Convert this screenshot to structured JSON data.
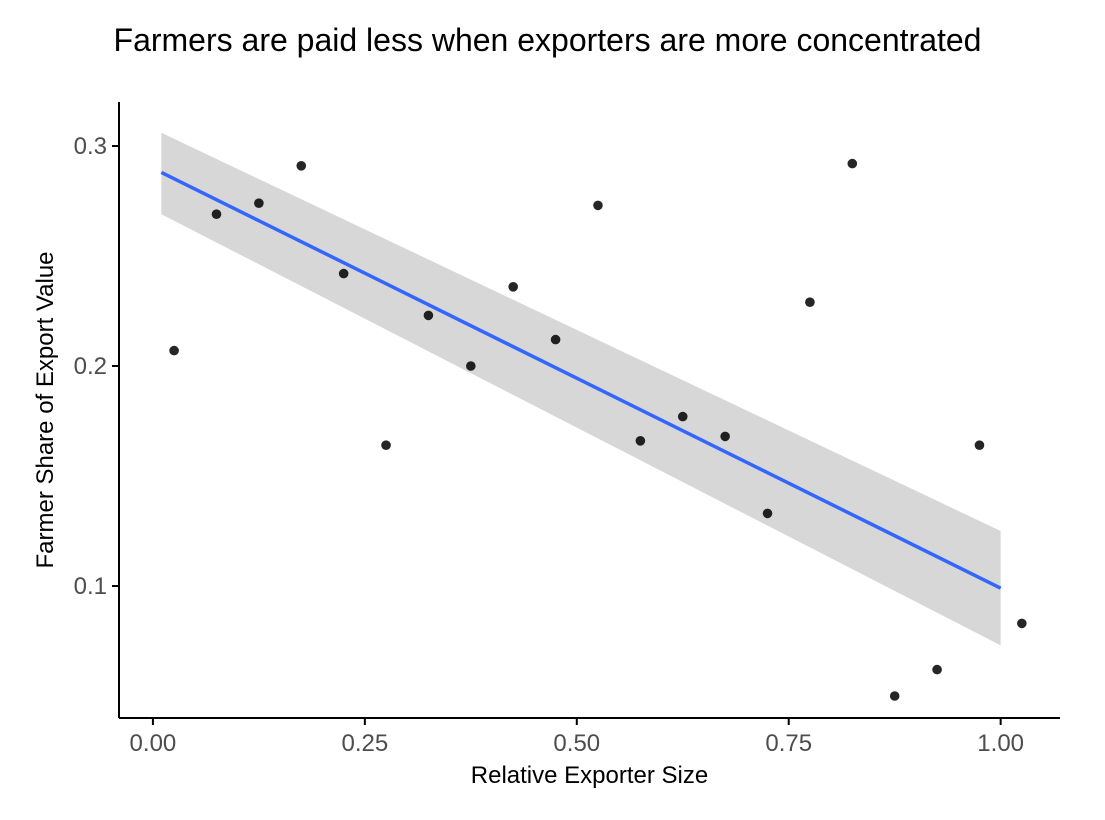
{
  "chart_data": {
    "type": "scatter",
    "title": "Farmers are paid less when exporters are more concentrated",
    "xlabel": "Relative Exporter Size",
    "ylabel": "Farmer Share of Export Value",
    "xlim": [
      -0.04,
      1.07
    ],
    "ylim": [
      0.04,
      0.32
    ],
    "x_ticks": [
      0.0,
      0.25,
      0.5,
      0.75,
      1.0
    ],
    "x_tick_labels": [
      "0.00",
      "0.25",
      "0.50",
      "0.75",
      "1.00"
    ],
    "y_ticks": [
      0.1,
      0.2,
      0.3
    ],
    "y_tick_labels": [
      "0.1",
      "0.2",
      "0.3"
    ],
    "grid": false,
    "legend": "none",
    "points": [
      {
        "x": 0.025,
        "y": 0.207
      },
      {
        "x": 0.075,
        "y": 0.269
      },
      {
        "x": 0.125,
        "y": 0.274
      },
      {
        "x": 0.175,
        "y": 0.291
      },
      {
        "x": 0.225,
        "y": 0.242
      },
      {
        "x": 0.275,
        "y": 0.164
      },
      {
        "x": 0.325,
        "y": 0.223
      },
      {
        "x": 0.375,
        "y": 0.2
      },
      {
        "x": 0.425,
        "y": 0.236
      },
      {
        "x": 0.475,
        "y": 0.212
      },
      {
        "x": 0.525,
        "y": 0.273
      },
      {
        "x": 0.575,
        "y": 0.166
      },
      {
        "x": 0.625,
        "y": 0.177
      },
      {
        "x": 0.675,
        "y": 0.168
      },
      {
        "x": 0.725,
        "y": 0.133
      },
      {
        "x": 0.775,
        "y": 0.229
      },
      {
        "x": 0.825,
        "y": 0.292
      },
      {
        "x": 0.875,
        "y": 0.05
      },
      {
        "x": 0.925,
        "y": 0.062
      },
      {
        "x": 0.975,
        "y": 0.164
      },
      {
        "x": 1.025,
        "y": 0.083
      }
    ],
    "fit": {
      "x": [
        0.01,
        1.0
      ],
      "y": [
        0.288,
        0.099
      ],
      "ci_lower": [
        0.269,
        0.073
      ],
      "ci_upper": [
        0.306,
        0.125
      ]
    },
    "colors": {
      "points": "#000000",
      "fit_line": "#3366ff",
      "ci_band": "#d3d3d3",
      "axis": "#000000",
      "tick_label": "#4d4d4d"
    }
  }
}
